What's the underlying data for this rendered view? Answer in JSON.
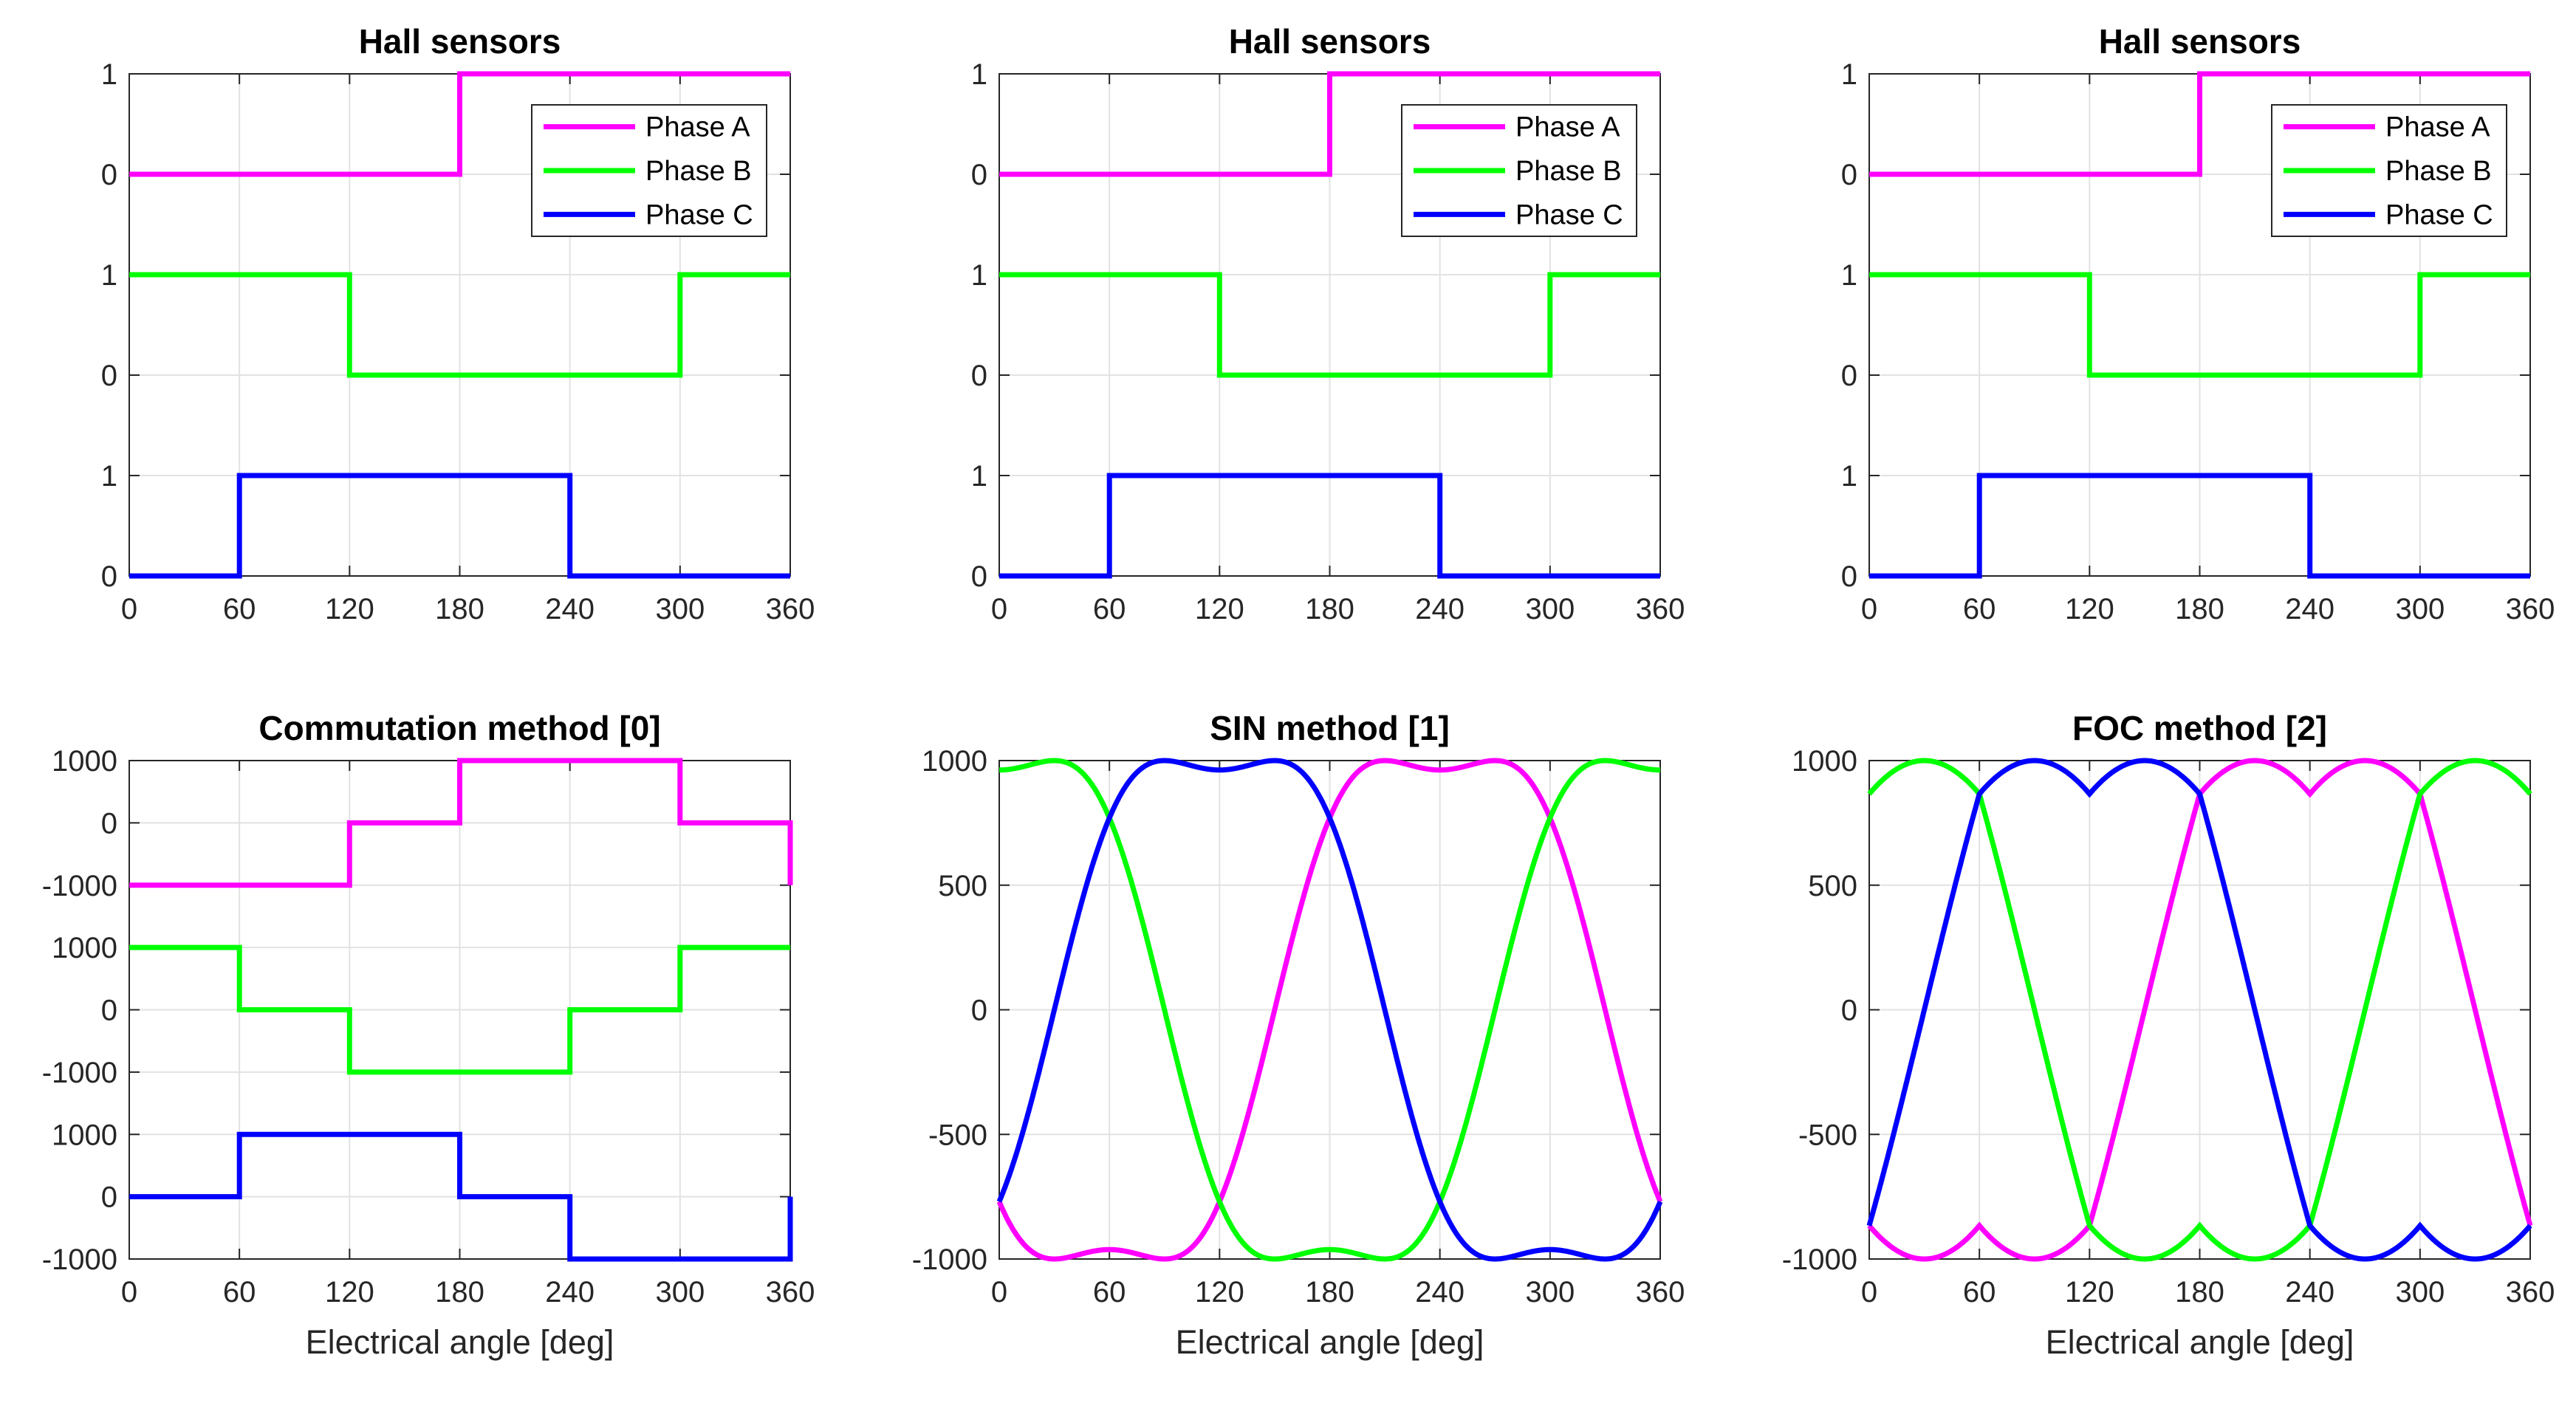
{
  "figure": {
    "background": "#FFFFFF",
    "axis_color": "#262626",
    "grid_color": "#E2E2E2",
    "tick_label_color": "#262626",
    "title_color": "#000000",
    "phase_colors": {
      "phase_a": "#FF00FF",
      "phase_b": "#00FF00",
      "phase_c": "#0000FF"
    }
  },
  "chart_data": [
    {
      "type": "step-bands",
      "title": "Hall sensors",
      "xlim": [
        0,
        360
      ],
      "ylim": [
        0,
        5
      ],
      "grid": true,
      "xticks": [
        {
          "v": 0,
          "label": "0"
        },
        {
          "v": 60,
          "label": "60"
        },
        {
          "v": 120,
          "label": "120"
        },
        {
          "v": 180,
          "label": "180"
        },
        {
          "v": 240,
          "label": "240"
        },
        {
          "v": 300,
          "label": "300"
        },
        {
          "v": 360,
          "label": "360"
        }
      ],
      "yticks": [
        {
          "v": 0,
          "label": "0"
        },
        {
          "v": 1,
          "label": "1"
        },
        {
          "v": 2,
          "label": "0"
        },
        {
          "v": 3,
          "label": "1"
        },
        {
          "v": 4,
          "label": "0"
        },
        {
          "v": 5,
          "label": "1"
        }
      ],
      "legend": {
        "position": "upper-right-inside",
        "entries": [
          "Phase A",
          "Phase B",
          "Phase C"
        ]
      },
      "closes_at_360_to_start": false,
      "series": [
        {
          "name": "Phase A",
          "color": "#FF00FF",
          "offset": 4,
          "unit_scale": 1,
          "steps": [
            [
              0,
              180,
              0
            ],
            [
              180,
              360,
              1
            ]
          ]
        },
        {
          "name": "Phase B",
          "color": "#00FF00",
          "offset": 2,
          "unit_scale": 1,
          "steps": [
            [
              0,
              120,
              1
            ],
            [
              120,
              300,
              0
            ],
            [
              300,
              360,
              1
            ]
          ]
        },
        {
          "name": "Phase C",
          "color": "#0000FF",
          "offset": 0,
          "unit_scale": 1,
          "steps": [
            [
              0,
              60,
              0
            ],
            [
              60,
              240,
              1
            ],
            [
              240,
              360,
              0
            ]
          ]
        }
      ]
    },
    {
      "type": "step-bands",
      "title": "Hall sensors",
      "xlim": [
        0,
        360
      ],
      "ylim": [
        0,
        5
      ],
      "grid": true,
      "xticks": [
        {
          "v": 0,
          "label": "0"
        },
        {
          "v": 60,
          "label": "60"
        },
        {
          "v": 120,
          "label": "120"
        },
        {
          "v": 180,
          "label": "180"
        },
        {
          "v": 240,
          "label": "240"
        },
        {
          "v": 300,
          "label": "300"
        },
        {
          "v": 360,
          "label": "360"
        }
      ],
      "yticks": [
        {
          "v": 0,
          "label": "0"
        },
        {
          "v": 1,
          "label": "1"
        },
        {
          "v": 2,
          "label": "0"
        },
        {
          "v": 3,
          "label": "1"
        },
        {
          "v": 4,
          "label": "0"
        },
        {
          "v": 5,
          "label": "1"
        }
      ],
      "legend": {
        "position": "upper-right-inside",
        "entries": [
          "Phase A",
          "Phase B",
          "Phase C"
        ]
      },
      "closes_at_360_to_start": false,
      "series": [
        {
          "name": "Phase A",
          "color": "#FF00FF",
          "offset": 4,
          "unit_scale": 1,
          "steps": [
            [
              0,
              180,
              0
            ],
            [
              180,
              360,
              1
            ]
          ]
        },
        {
          "name": "Phase B",
          "color": "#00FF00",
          "offset": 2,
          "unit_scale": 1,
          "steps": [
            [
              0,
              120,
              1
            ],
            [
              120,
              300,
              0
            ],
            [
              300,
              360,
              1
            ]
          ]
        },
        {
          "name": "Phase C",
          "color": "#0000FF",
          "offset": 0,
          "unit_scale": 1,
          "steps": [
            [
              0,
              60,
              0
            ],
            [
              60,
              240,
              1
            ],
            [
              240,
              360,
              0
            ]
          ]
        }
      ]
    },
    {
      "type": "step-bands",
      "title": "Hall sensors",
      "xlim": [
        0,
        360
      ],
      "ylim": [
        0,
        5
      ],
      "grid": true,
      "xticks": [
        {
          "v": 0,
          "label": "0"
        },
        {
          "v": 60,
          "label": "60"
        },
        {
          "v": 120,
          "label": "120"
        },
        {
          "v": 180,
          "label": "180"
        },
        {
          "v": 240,
          "label": "240"
        },
        {
          "v": 300,
          "label": "300"
        },
        {
          "v": 360,
          "label": "360"
        }
      ],
      "yticks": [
        {
          "v": 0,
          "label": "0"
        },
        {
          "v": 1,
          "label": "1"
        },
        {
          "v": 2,
          "label": "0"
        },
        {
          "v": 3,
          "label": "1"
        },
        {
          "v": 4,
          "label": "0"
        },
        {
          "v": 5,
          "label": "1"
        }
      ],
      "legend": {
        "position": "upper-right-inside",
        "entries": [
          "Phase A",
          "Phase B",
          "Phase C"
        ]
      },
      "closes_at_360_to_start": false,
      "series": [
        {
          "name": "Phase A",
          "color": "#FF00FF",
          "offset": 4,
          "unit_scale": 1,
          "steps": [
            [
              0,
              180,
              0
            ],
            [
              180,
              360,
              1
            ]
          ]
        },
        {
          "name": "Phase B",
          "color": "#00FF00",
          "offset": 2,
          "unit_scale": 1,
          "steps": [
            [
              0,
              120,
              1
            ],
            [
              120,
              300,
              0
            ],
            [
              300,
              360,
              1
            ]
          ]
        },
        {
          "name": "Phase C",
          "color": "#0000FF",
          "offset": 0,
          "unit_scale": 1,
          "steps": [
            [
              0,
              60,
              0
            ],
            [
              60,
              240,
              1
            ],
            [
              240,
              360,
              0
            ]
          ]
        }
      ]
    },
    {
      "type": "step-bands",
      "title": "Commutation method [0]",
      "xlabel": "Electrical angle [deg]",
      "xlim": [
        0,
        360
      ],
      "ylim": [
        0,
        8
      ],
      "grid": true,
      "xticks": [
        {
          "v": 0,
          "label": "0"
        },
        {
          "v": 60,
          "label": "60"
        },
        {
          "v": 120,
          "label": "120"
        },
        {
          "v": 180,
          "label": "180"
        },
        {
          "v": 240,
          "label": "240"
        },
        {
          "v": 300,
          "label": "300"
        },
        {
          "v": 360,
          "label": "360"
        }
      ],
      "yticks": [
        {
          "v": 0,
          "label": "-1000"
        },
        {
          "v": 1,
          "label": "0"
        },
        {
          "v": 2,
          "label": "1000"
        },
        {
          "v": 3,
          "label": "-1000"
        },
        {
          "v": 4,
          "label": "0"
        },
        {
          "v": 5,
          "label": "1000"
        },
        {
          "v": 6,
          "label": "-1000"
        },
        {
          "v": 7,
          "label": "0"
        },
        {
          "v": 8,
          "label": "1000"
        }
      ],
      "closes_at_360_to_start": true,
      "series": [
        {
          "name": "Phase A",
          "color": "#FF00FF",
          "offset": 7,
          "unit_scale": 0.001,
          "steps": [
            [
              0,
              120,
              -1000
            ],
            [
              120,
              180,
              0
            ],
            [
              180,
              300,
              1000
            ],
            [
              300,
              360,
              0
            ]
          ]
        },
        {
          "name": "Phase B",
          "color": "#00FF00",
          "offset": 4,
          "unit_scale": 0.001,
          "steps": [
            [
              0,
              60,
              1000
            ],
            [
              60,
              120,
              0
            ],
            [
              120,
              240,
              -1000
            ],
            [
              240,
              300,
              0
            ],
            [
              300,
              360,
              1000
            ]
          ]
        },
        {
          "name": "Phase C",
          "color": "#0000FF",
          "offset": 1,
          "unit_scale": 0.001,
          "steps": [
            [
              0,
              60,
              0
            ],
            [
              60,
              180,
              1000
            ],
            [
              180,
              240,
              0
            ],
            [
              240,
              360,
              -1000
            ]
          ]
        }
      ]
    },
    {
      "type": "waveforms",
      "title": "SIN method [1]",
      "xlabel": "Electrical angle [deg]",
      "xlim": [
        0,
        360
      ],
      "ylim": [
        -1000,
        1000
      ],
      "grid": true,
      "xticks": [
        {
          "v": 0,
          "label": "0"
        },
        {
          "v": 60,
          "label": "60"
        },
        {
          "v": 120,
          "label": "120"
        },
        {
          "v": 180,
          "label": "180"
        },
        {
          "v": 240,
          "label": "240"
        },
        {
          "v": 300,
          "label": "300"
        },
        {
          "v": 360,
          "label": "360"
        }
      ],
      "yticks": [
        {
          "v": -1000,
          "label": "-1000"
        },
        {
          "v": -500,
          "label": "-500"
        },
        {
          "v": 0,
          "label": "0"
        },
        {
          "v": 500,
          "label": "500"
        },
        {
          "v": 1000,
          "label": "1000"
        }
      ],
      "formula": {
        "type": "third_harmonic",
        "amplitude": 1000,
        "scale": 1.1547,
        "third_harmonic_ratio": 0.16667
      },
      "samples_deg": [
        0,
        30,
        60,
        90,
        120,
        150,
        180,
        210,
        240,
        270,
        300,
        330,
        360
      ],
      "series": [
        {
          "name": "Phase A",
          "color": "#FF00FF",
          "phase_deg": -150,
          "samples": [
            -770,
            -1000,
            -962,
            -1000,
            -770,
            0,
            770,
            1000,
            962,
            1000,
            770,
            0,
            -770
          ]
        },
        {
          "name": "Phase B",
          "color": "#00FF00",
          "phase_deg": 90,
          "samples": [
            962,
            1000,
            770,
            0,
            -770,
            -1000,
            -962,
            -1000,
            -770,
            0,
            770,
            1000,
            962
          ]
        },
        {
          "name": "Phase C",
          "color": "#0000FF",
          "phase_deg": -30,
          "samples": [
            -770,
            0,
            770,
            1000,
            962,
            1000,
            770,
            0,
            -770,
            -1000,
            -962,
            -1000,
            -770
          ]
        }
      ]
    },
    {
      "type": "waveforms",
      "title": "FOC method [2]",
      "xlabel": "Electrical angle [deg]",
      "xlim": [
        0,
        360
      ],
      "ylim": [
        -1000,
        1000
      ],
      "grid": true,
      "xticks": [
        {
          "v": 0,
          "label": "0"
        },
        {
          "v": 60,
          "label": "60"
        },
        {
          "v": 120,
          "label": "120"
        },
        {
          "v": 180,
          "label": "180"
        },
        {
          "v": 240,
          "label": "240"
        },
        {
          "v": 300,
          "label": "300"
        },
        {
          "v": 360,
          "label": "360"
        }
      ],
      "yticks": [
        {
          "v": -1000,
          "label": "-1000"
        },
        {
          "v": -500,
          "label": "-500"
        },
        {
          "v": 0,
          "label": "0"
        },
        {
          "v": 500,
          "label": "500"
        },
        {
          "v": 1000,
          "label": "1000"
        }
      ],
      "formula": {
        "type": "svpwm",
        "amplitude": 1000,
        "scale": 1.1547
      },
      "samples_deg": [
        0,
        30,
        60,
        90,
        120,
        150,
        180,
        210,
        240,
        270,
        300,
        330,
        360
      ],
      "series": [
        {
          "name": "Phase A",
          "color": "#FF00FF",
          "phase_deg": -150,
          "samples": [
            -866,
            -1000,
            -866,
            -1000,
            -866,
            0,
            866,
            1000,
            866,
            1000,
            866,
            0,
            -866
          ]
        },
        {
          "name": "Phase B",
          "color": "#00FF00",
          "phase_deg": 90,
          "samples": [
            866,
            1000,
            866,
            0,
            -866,
            -1000,
            -866,
            -1000,
            -866,
            0,
            866,
            1000,
            866
          ]
        },
        {
          "name": "Phase C",
          "color": "#0000FF",
          "phase_deg": -30,
          "samples": [
            -866,
            0,
            866,
            1000,
            866,
            1000,
            866,
            0,
            -866,
            -1000,
            -866,
            -1000,
            -866
          ]
        }
      ]
    }
  ]
}
